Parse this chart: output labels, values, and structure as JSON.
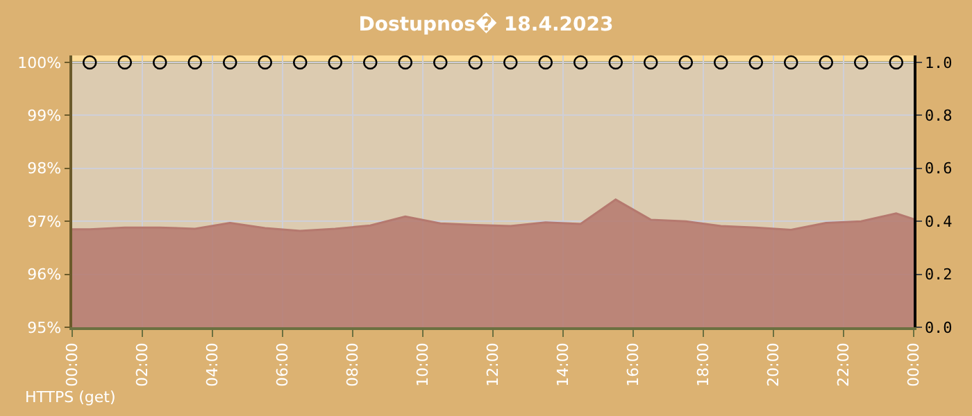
{
  "chart_data": {
    "type": "area",
    "title": "Dostupnos� 18.4.2023",
    "xlim": [
      0,
      24
    ],
    "xticks": [
      {
        "value": 0,
        "label": "00:00"
      },
      {
        "value": 2,
        "label": "02:00"
      },
      {
        "value": 4,
        "label": "04:00"
      },
      {
        "value": 6,
        "label": "06:00"
      },
      {
        "value": 8,
        "label": "08:00"
      },
      {
        "value": 10,
        "label": "10:00"
      },
      {
        "value": 12,
        "label": "12:00"
      },
      {
        "value": 14,
        "label": "14:00"
      },
      {
        "value": 16,
        "label": "16:00"
      },
      {
        "value": 18,
        "label": "18:00"
      },
      {
        "value": 20,
        "label": "20:00"
      },
      {
        "value": 22,
        "label": "22:00"
      },
      {
        "value": 24,
        "label": "00:00"
      }
    ],
    "ylim": [
      95,
      100.13
    ],
    "yticks": [
      {
        "value": 95,
        "label": "95%"
      },
      {
        "value": 96,
        "label": "96%"
      },
      {
        "value": 97,
        "label": "97%"
      },
      {
        "value": 98,
        "label": "98%"
      },
      {
        "value": 99,
        "label": "99%"
      },
      {
        "value": 100,
        "label": "100%"
      }
    ],
    "y2lim": [
      0,
      1.026
    ],
    "y2ticks": [
      {
        "value": 0,
        "label": "0.0"
      },
      {
        "value": 0.2,
        "label": "0.2"
      },
      {
        "value": 0.4,
        "label": "0.4"
      },
      {
        "value": 0.6,
        "label": "0.6"
      },
      {
        "value": 0.8,
        "label": "0.8"
      },
      {
        "value": 1,
        "label": "1.0"
      }
    ],
    "grid": true,
    "bands": [
      {
        "axis": "y",
        "from": 100,
        "to": 100.13,
        "color": "#ffdd99"
      }
    ],
    "ref_lines": [
      {
        "axis": "y",
        "value": 100,
        "color": "#6b7040"
      }
    ],
    "series": [
      {
        "color": "#b5796f",
        "x": [
          0,
          0.5,
          1.5,
          2.5,
          3.5,
          4.5,
          5.5,
          6.5,
          7.5,
          8.5,
          9.5,
          10.5,
          11.5,
          12.5,
          13.5,
          14.5,
          15.5,
          16.5,
          17.5,
          18.5,
          19.5,
          20.5,
          21.5,
          22.5,
          23.5,
          24
        ],
        "values": [
          96.85,
          96.85,
          96.88,
          96.88,
          96.86,
          96.97,
          96.87,
          96.82,
          96.86,
          96.92,
          97.09,
          96.96,
          96.93,
          96.91,
          96.98,
          96.95,
          97.41,
          97.03,
          97.0,
          96.91,
          96.88,
          96.84,
          96.97,
          97.0,
          97.15,
          97.04
        ]
      },
      {
        "type": "scatter",
        "axis": "y2",
        "color": "#000000",
        "marker": "circle",
        "x": [
          0.5,
          1.5,
          2.5,
          3.5,
          4.5,
          5.5,
          6.5,
          7.5,
          8.5,
          9.5,
          10.5,
          11.5,
          12.5,
          13.5,
          14.5,
          15.5,
          16.5,
          17.5,
          18.5,
          19.5,
          20.5,
          21.5,
          22.5,
          23.5
        ],
        "values": [
          1,
          1,
          1,
          1,
          1,
          1,
          1,
          1,
          1,
          1,
          1,
          1,
          1,
          1,
          1,
          1,
          1,
          1,
          1,
          1,
          1,
          1,
          1,
          1
        ]
      }
    ],
    "annotations": [
      "HTTPS (get)"
    ]
  }
}
